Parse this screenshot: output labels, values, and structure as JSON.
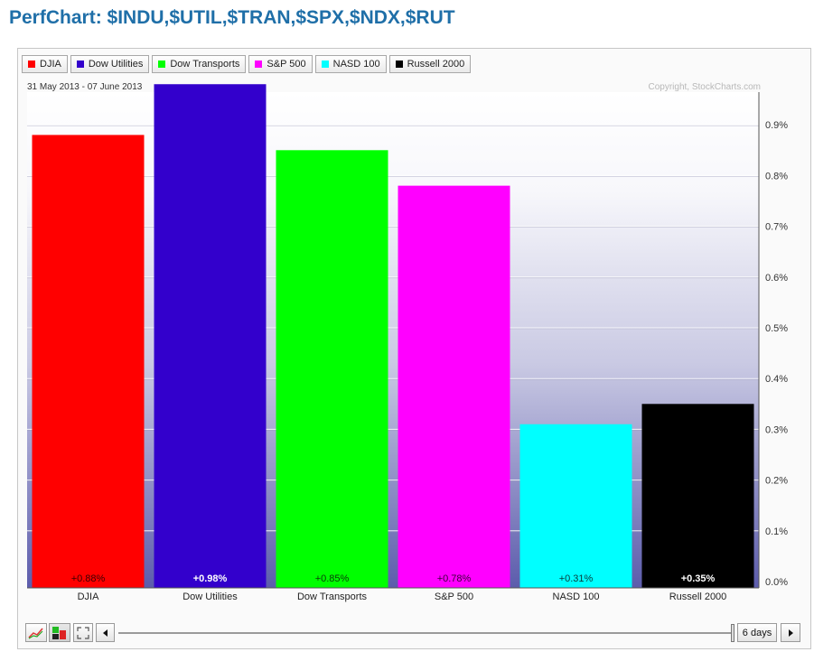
{
  "page": {
    "title": "PerfChart: $INDU,$UTIL,$TRAN,$SPX,$NDX,$RUT"
  },
  "chart_data": {
    "type": "bar",
    "date_range": "31 May 2013 - 07 June 2013",
    "copyright": "Copyright, StockCharts.com",
    "categories": [
      "DJIA",
      "Dow Utilities",
      "Dow Transports",
      "S&P 500",
      "NASD 100",
      "Russell 2000"
    ],
    "values": [
      0.88,
      0.98,
      0.85,
      0.78,
      0.31,
      0.35
    ],
    "value_labels": [
      "+0.88%",
      "+0.98%",
      "+0.85%",
      "+0.78%",
      "+0.31%",
      "+0.35%"
    ],
    "colors": [
      "#ff0000",
      "#3300cc",
      "#00ff00",
      "#ff00ff",
      "#00ffff",
      "#000000"
    ],
    "value_label_colors": [
      "#3a0000",
      "#ffffff",
      "#0a3a0a",
      "#3a003a",
      "#0a3a3a",
      "#ffffff"
    ],
    "yticks": [
      "0.0%",
      "0.1%",
      "0.2%",
      "0.3%",
      "0.4%",
      "0.5%",
      "0.6%",
      "0.7%",
      "0.8%",
      "0.9%"
    ],
    "ylim": [
      0,
      1.0
    ],
    "y_axis_side": "right",
    "grid": true,
    "legend_placement": "top-left"
  },
  "legend": {
    "items": [
      {
        "label": "DJIA",
        "color": "#ff0000"
      },
      {
        "label": "Dow Utilities",
        "color": "#3300cc"
      },
      {
        "label": "Dow Transports",
        "color": "#00ff00"
      },
      {
        "label": "S&P 500",
        "color": "#ff00ff"
      },
      {
        "label": "NASD 100",
        "color": "#00ffff"
      },
      {
        "label": "Russell 2000",
        "color": "#000000"
      }
    ]
  },
  "controls": {
    "prev_icon": "left-arrow-icon",
    "next_icon": "right-arrow-icon",
    "period_label": "6 days",
    "icons": [
      "line-chart-icon",
      "histogram-icon",
      "fullscreen-icon"
    ]
  }
}
